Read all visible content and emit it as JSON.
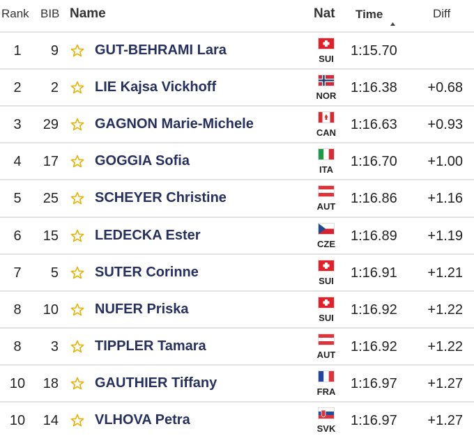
{
  "header": {
    "rank": "Rank",
    "bib": "BIB",
    "name": "Name",
    "nat": "Nat",
    "time": "Time",
    "diff": "Diff"
  },
  "rows": [
    {
      "rank": 1,
      "bib": 9,
      "name": "GUT-BEHRAMI Lara",
      "nat": "SUI",
      "time": "1:15.70"
    },
    {
      "rank": 2,
      "bib": 2,
      "name": "LIE Kajsa Vickhoff",
      "nat": "NOR",
      "time": "1:16.38",
      "diff": "+0.68"
    },
    {
      "rank": 3,
      "bib": 29,
      "name": "GAGNON Marie-Michele",
      "nat": "CAN",
      "time": "1:16.63",
      "diff": "+0.93"
    },
    {
      "rank": 4,
      "bib": 17,
      "name": "GOGGIA Sofia",
      "nat": "ITA",
      "time": "1:16.70",
      "diff": "+1.00"
    },
    {
      "rank": 5,
      "bib": 25,
      "name": "SCHEYER Christine",
      "nat": "AUT",
      "time": "1:16.86",
      "diff": "+1.16"
    },
    {
      "rank": 6,
      "bib": 15,
      "name": "LEDECKA Ester",
      "nat": "CZE",
      "time": "1:16.89",
      "diff": "+1.19"
    },
    {
      "rank": 7,
      "bib": 5,
      "name": "SUTER Corinne",
      "nat": "SUI",
      "time": "1:16.91",
      "diff": "+1.21"
    },
    {
      "rank": 8,
      "bib": 10,
      "name": "NUFER Priska",
      "nat": "SUI",
      "time": "1:16.92",
      "diff": "+1.22"
    },
    {
      "rank": 8,
      "bib": 3,
      "name": "TIPPLER Tamara",
      "nat": "AUT",
      "time": "1:16.92",
      "diff": "+1.22"
    },
    {
      "rank": 10,
      "bib": 18,
      "name": "GAUTHIER Tiffany",
      "nat": "FRA",
      "time": "1:16.97",
      "diff": "+1.27"
    },
    {
      "rank": 10,
      "bib": 14,
      "name": "VLHOVA Petra",
      "nat": "SVK",
      "time": "1:16.97",
      "diff": "+1.27"
    }
  ]
}
